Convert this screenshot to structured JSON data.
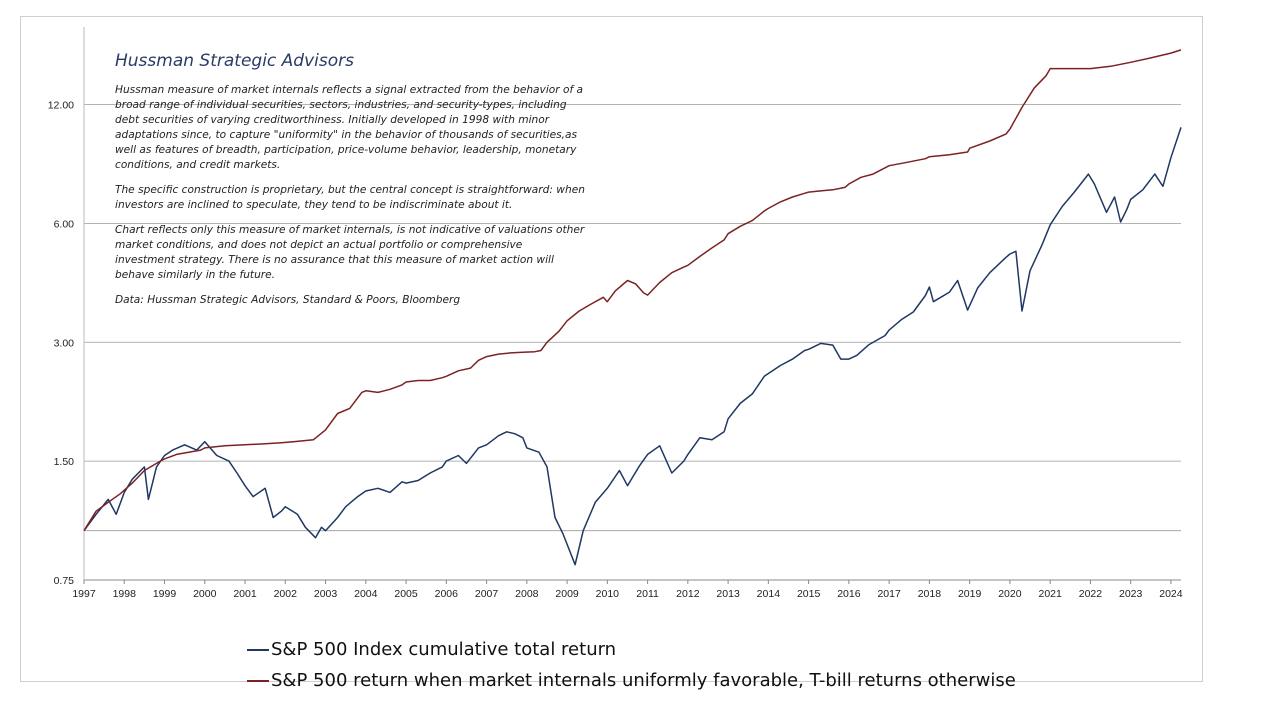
{
  "chart_data": {
    "type": "line",
    "title": "Hussman Strategic Advisors",
    "y_scale": "log",
    "ylim": [
      0.75,
      18.0
    ],
    "xlim": [
      1997.0,
      2024.25
    ],
    "y_ticks": [
      0.75,
      1.5,
      3.0,
      6.0,
      12.0
    ],
    "y_tick_labels": [
      "0.75",
      "1.50",
      "3.00",
      "6.00",
      "12.00"
    ],
    "x_ticks": [
      1997,
      1998,
      1999,
      2000,
      2001,
      2002,
      2003,
      2004,
      2005,
      2006,
      2007,
      2008,
      2009,
      2010,
      2011,
      2012,
      2013,
      2014,
      2015,
      2016,
      2017,
      2018,
      2019,
      2020,
      2021,
      2022,
      2023,
      2024
    ],
    "x_tick_labels": [
      "1997",
      "1998",
      "1999",
      "2000",
      "2001",
      "2002",
      "2003",
      "2004",
      "2005",
      "2006",
      "2007",
      "2008",
      "2009",
      "2010",
      "2011",
      "2012",
      "2013",
      "2014",
      "2015",
      "2016",
      "2017",
      "2018",
      "2019",
      "2020",
      "2021",
      "2022",
      "2023",
      "2024"
    ],
    "grid": "horizontal",
    "legend_position": "bottom",
    "series": [
      {
        "name": "S&P 500 Index cumulative total return",
        "color": "#1f3864",
        "points": [
          [
            1997.0,
            1.0
          ],
          [
            1997.3,
            1.1
          ],
          [
            1997.6,
            1.2
          ],
          [
            1997.8,
            1.1
          ],
          [
            1998.0,
            1.25
          ],
          [
            1998.2,
            1.35
          ],
          [
            1998.5,
            1.45
          ],
          [
            1998.6,
            1.2
          ],
          [
            1998.8,
            1.45
          ],
          [
            1999.0,
            1.55
          ],
          [
            1999.2,
            1.6
          ],
          [
            1999.5,
            1.65
          ],
          [
            1999.8,
            1.6
          ],
          [
            2000.0,
            1.68
          ],
          [
            2000.3,
            1.55
          ],
          [
            2000.6,
            1.5
          ],
          [
            2000.8,
            1.4
          ],
          [
            2001.0,
            1.3
          ],
          [
            2001.2,
            1.22
          ],
          [
            2001.5,
            1.28
          ],
          [
            2001.7,
            1.08
          ],
          [
            2001.9,
            1.12
          ],
          [
            2002.0,
            1.15
          ],
          [
            2002.3,
            1.1
          ],
          [
            2002.5,
            1.02
          ],
          [
            2002.75,
            0.96
          ],
          [
            2002.9,
            1.02
          ],
          [
            2003.0,
            1.0
          ],
          [
            2003.3,
            1.08
          ],
          [
            2003.5,
            1.15
          ],
          [
            2003.8,
            1.22
          ],
          [
            2004.0,
            1.26
          ],
          [
            2004.3,
            1.28
          ],
          [
            2004.6,
            1.25
          ],
          [
            2004.9,
            1.33
          ],
          [
            2005.0,
            1.32
          ],
          [
            2005.3,
            1.34
          ],
          [
            2005.6,
            1.4
          ],
          [
            2005.9,
            1.45
          ],
          [
            2006.0,
            1.5
          ],
          [
            2006.3,
            1.55
          ],
          [
            2006.5,
            1.48
          ],
          [
            2006.8,
            1.62
          ],
          [
            2007.0,
            1.65
          ],
          [
            2007.3,
            1.74
          ],
          [
            2007.5,
            1.78
          ],
          [
            2007.7,
            1.76
          ],
          [
            2007.9,
            1.72
          ],
          [
            2008.0,
            1.62
          ],
          [
            2008.3,
            1.58
          ],
          [
            2008.5,
            1.45
          ],
          [
            2008.7,
            1.08
          ],
          [
            2008.9,
            0.98
          ],
          [
            2009.2,
            0.82
          ],
          [
            2009.4,
            1.0
          ],
          [
            2009.7,
            1.18
          ],
          [
            2010.0,
            1.28
          ],
          [
            2010.3,
            1.42
          ],
          [
            2010.5,
            1.3
          ],
          [
            2010.8,
            1.46
          ],
          [
            2011.0,
            1.56
          ],
          [
            2011.3,
            1.64
          ],
          [
            2011.6,
            1.4
          ],
          [
            2011.9,
            1.5
          ],
          [
            2012.0,
            1.56
          ],
          [
            2012.3,
            1.72
          ],
          [
            2012.6,
            1.7
          ],
          [
            2012.9,
            1.78
          ],
          [
            2013.0,
            1.92
          ],
          [
            2013.3,
            2.1
          ],
          [
            2013.6,
            2.22
          ],
          [
            2013.9,
            2.46
          ],
          [
            2014.0,
            2.5
          ],
          [
            2014.3,
            2.62
          ],
          [
            2014.6,
            2.72
          ],
          [
            2014.9,
            2.86
          ],
          [
            2015.0,
            2.88
          ],
          [
            2015.3,
            2.98
          ],
          [
            2015.6,
            2.95
          ],
          [
            2015.8,
            2.72
          ],
          [
            2016.0,
            2.72
          ],
          [
            2016.2,
            2.78
          ],
          [
            2016.5,
            2.96
          ],
          [
            2016.9,
            3.12
          ],
          [
            2017.0,
            3.22
          ],
          [
            2017.3,
            3.42
          ],
          [
            2017.6,
            3.58
          ],
          [
            2017.9,
            3.94
          ],
          [
            2018.0,
            4.14
          ],
          [
            2018.1,
            3.8
          ],
          [
            2018.5,
            4.02
          ],
          [
            2018.7,
            4.3
          ],
          [
            2018.95,
            3.62
          ],
          [
            2019.2,
            4.12
          ],
          [
            2019.5,
            4.5
          ],
          [
            2019.9,
            4.92
          ],
          [
            2020.0,
            5.02
          ],
          [
            2020.15,
            5.1
          ],
          [
            2020.3,
            3.6
          ],
          [
            2020.5,
            4.55
          ],
          [
            2020.8,
            5.3
          ],
          [
            2021.0,
            5.95
          ],
          [
            2021.3,
            6.62
          ],
          [
            2021.6,
            7.2
          ],
          [
            2021.95,
            8.0
          ],
          [
            2022.1,
            7.55
          ],
          [
            2022.4,
            6.4
          ],
          [
            2022.6,
            7.0
          ],
          [
            2022.75,
            6.05
          ],
          [
            2022.9,
            6.5
          ],
          [
            2023.0,
            6.9
          ],
          [
            2023.3,
            7.3
          ],
          [
            2023.6,
            8.0
          ],
          [
            2023.8,
            7.45
          ],
          [
            2024.0,
            8.8
          ],
          [
            2024.25,
            10.5
          ]
        ]
      },
      {
        "name": "S&P 500 return when market internals uniformly favorable, T-bill returns otherwise",
        "color": "#7b2323",
        "points": [
          [
            1997.0,
            1.0
          ],
          [
            1997.3,
            1.12
          ],
          [
            1997.6,
            1.18
          ],
          [
            1997.9,
            1.24
          ],
          [
            1998.2,
            1.32
          ],
          [
            1998.5,
            1.42
          ],
          [
            1998.8,
            1.48
          ],
          [
            1999.0,
            1.52
          ],
          [
            1999.3,
            1.56
          ],
          [
            1999.6,
            1.58
          ],
          [
            1999.9,
            1.6
          ],
          [
            2000.0,
            1.62
          ],
          [
            2000.5,
            1.64
          ],
          [
            2001.0,
            1.65
          ],
          [
            2001.5,
            1.66
          ],
          [
            2001.9,
            1.67
          ],
          [
            2002.2,
            1.68
          ],
          [
            2002.7,
            1.7
          ],
          [
            2003.0,
            1.8
          ],
          [
            2003.3,
            1.98
          ],
          [
            2003.6,
            2.04
          ],
          [
            2003.9,
            2.24
          ],
          [
            2004.0,
            2.26
          ],
          [
            2004.3,
            2.24
          ],
          [
            2004.6,
            2.28
          ],
          [
            2004.9,
            2.34
          ],
          [
            2005.0,
            2.38
          ],
          [
            2005.3,
            2.4
          ],
          [
            2005.6,
            2.4
          ],
          [
            2005.9,
            2.44
          ],
          [
            2006.0,
            2.46
          ],
          [
            2006.3,
            2.54
          ],
          [
            2006.6,
            2.58
          ],
          [
            2006.8,
            2.7
          ],
          [
            2007.0,
            2.76
          ],
          [
            2007.3,
            2.8
          ],
          [
            2007.6,
            2.82
          ],
          [
            2007.9,
            2.83
          ],
          [
            2008.2,
            2.84
          ],
          [
            2008.35,
            2.86
          ],
          [
            2008.5,
            3.0
          ],
          [
            2008.8,
            3.2
          ],
          [
            2009.0,
            3.4
          ],
          [
            2009.3,
            3.6
          ],
          [
            2009.6,
            3.75
          ],
          [
            2009.9,
            3.9
          ],
          [
            2010.0,
            3.8
          ],
          [
            2010.2,
            4.05
          ],
          [
            2010.5,
            4.3
          ],
          [
            2010.7,
            4.22
          ],
          [
            2010.9,
            4.0
          ],
          [
            2011.0,
            3.95
          ],
          [
            2011.3,
            4.25
          ],
          [
            2011.6,
            4.5
          ],
          [
            2011.9,
            4.65
          ],
          [
            2012.0,
            4.7
          ],
          [
            2012.3,
            4.95
          ],
          [
            2012.6,
            5.2
          ],
          [
            2012.9,
            5.45
          ],
          [
            2013.0,
            5.65
          ],
          [
            2013.3,
            5.9
          ],
          [
            2013.6,
            6.1
          ],
          [
            2013.9,
            6.45
          ],
          [
            2014.0,
            6.55
          ],
          [
            2014.3,
            6.8
          ],
          [
            2014.6,
            7.0
          ],
          [
            2014.9,
            7.15
          ],
          [
            2015.0,
            7.2
          ],
          [
            2015.3,
            7.25
          ],
          [
            2015.6,
            7.3
          ],
          [
            2015.9,
            7.4
          ],
          [
            2016.0,
            7.55
          ],
          [
            2016.3,
            7.85
          ],
          [
            2016.6,
            8.0
          ],
          [
            2016.9,
            8.3
          ],
          [
            2017.0,
            8.4
          ],
          [
            2017.4,
            8.55
          ],
          [
            2017.9,
            8.75
          ],
          [
            2018.0,
            8.85
          ],
          [
            2018.5,
            8.95
          ],
          [
            2018.95,
            9.1
          ],
          [
            2019.0,
            9.3
          ],
          [
            2019.5,
            9.7
          ],
          [
            2019.9,
            10.1
          ],
          [
            2020.0,
            10.4
          ],
          [
            2020.3,
            11.8
          ],
          [
            2020.6,
            13.2
          ],
          [
            2020.9,
            14.2
          ],
          [
            2021.0,
            14.8
          ],
          [
            2021.5,
            14.8
          ],
          [
            2022.0,
            14.8
          ],
          [
            2022.5,
            15.0
          ],
          [
            2023.0,
            15.35
          ],
          [
            2023.5,
            15.75
          ],
          [
            2024.0,
            16.2
          ],
          [
            2024.25,
            16.5
          ]
        ]
      }
    ]
  },
  "notes": {
    "brand": "Hussman Strategic Advisors",
    "p1": "Hussman measure of market internals reflects a signal extracted from the behavior of a broad range of individual securities, sectors, industries, and security-types, including debt securities of varying creditworthiness. Initially developed in 1998 with minor adaptations since, to capture \"uniformity\" in the behavior of thousands of securities,as well as features of breadth, participation, price-volume behavior, leadership, monetary conditions, and credit markets.",
    "p2": "The specific construction is proprietary, but the central concept is straightforward: when investors are inclined to speculate, they tend to be indiscriminate about it.",
    "p3": "Chart reflects only this measure of market internals, is not indicative of valuations other market conditions, and does not depict an actual portfolio or comprehensive investment strategy. There is no assurance that this measure of market action will behave similarly in the future.",
    "p4": "Data: Hussman Strategic Advisors, Standard & Poors, Bloomberg"
  },
  "legend": {
    "sp500_label": "S&P 500 Index cumulative total return",
    "strategy_label": "S&P 500 return when market internals uniformly favorable, T-bill returns otherwise"
  }
}
